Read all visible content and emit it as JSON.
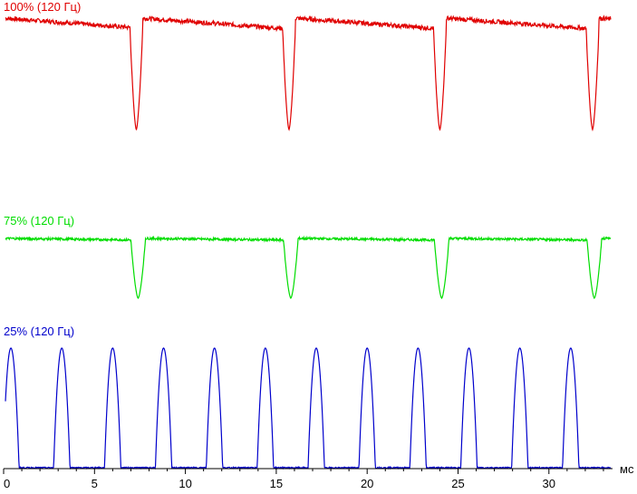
{
  "chart_data": {
    "type": "line",
    "x_unit": "мс",
    "xlim": [
      0,
      33.5
    ],
    "x_ticks": [
      0,
      5,
      10,
      15,
      20,
      25,
      30
    ],
    "grid": false,
    "period_ms": 8.333,
    "series": [
      {
        "name": "100% (120 Гц)",
        "color": "#e00000",
        "shape": "dip",
        "dip_centers_ms": [
          7.3,
          15.7,
          24.0,
          32.4
        ],
        "baseline_level": 1.0,
        "baseline_end_level": 0.9,
        "dip_min_level": 0.0,
        "dip_half_width_ms": 0.35
      },
      {
        "name": "75% (120 Гц)",
        "color": "#00dd00",
        "shape": "dip",
        "dip_centers_ms": [
          7.4,
          15.8,
          24.1,
          32.5
        ],
        "baseline_level": 1.0,
        "baseline_end_level": 0.97,
        "dip_min_level": 0.0,
        "dip_half_width_ms": 0.4
      },
      {
        "name": "25% (120 Гц)",
        "color": "#0000cc",
        "shape": "pulse",
        "pulse_centers_ms": [
          0.4,
          3.2,
          6.0,
          8.8,
          11.6,
          14.4,
          17.2,
          20.0,
          22.8,
          25.6,
          28.4,
          31.2
        ],
        "baseline_level": 0.0,
        "pulse_max_level": 1.0,
        "pulse_half_width_ms": 0.45
      }
    ]
  }
}
